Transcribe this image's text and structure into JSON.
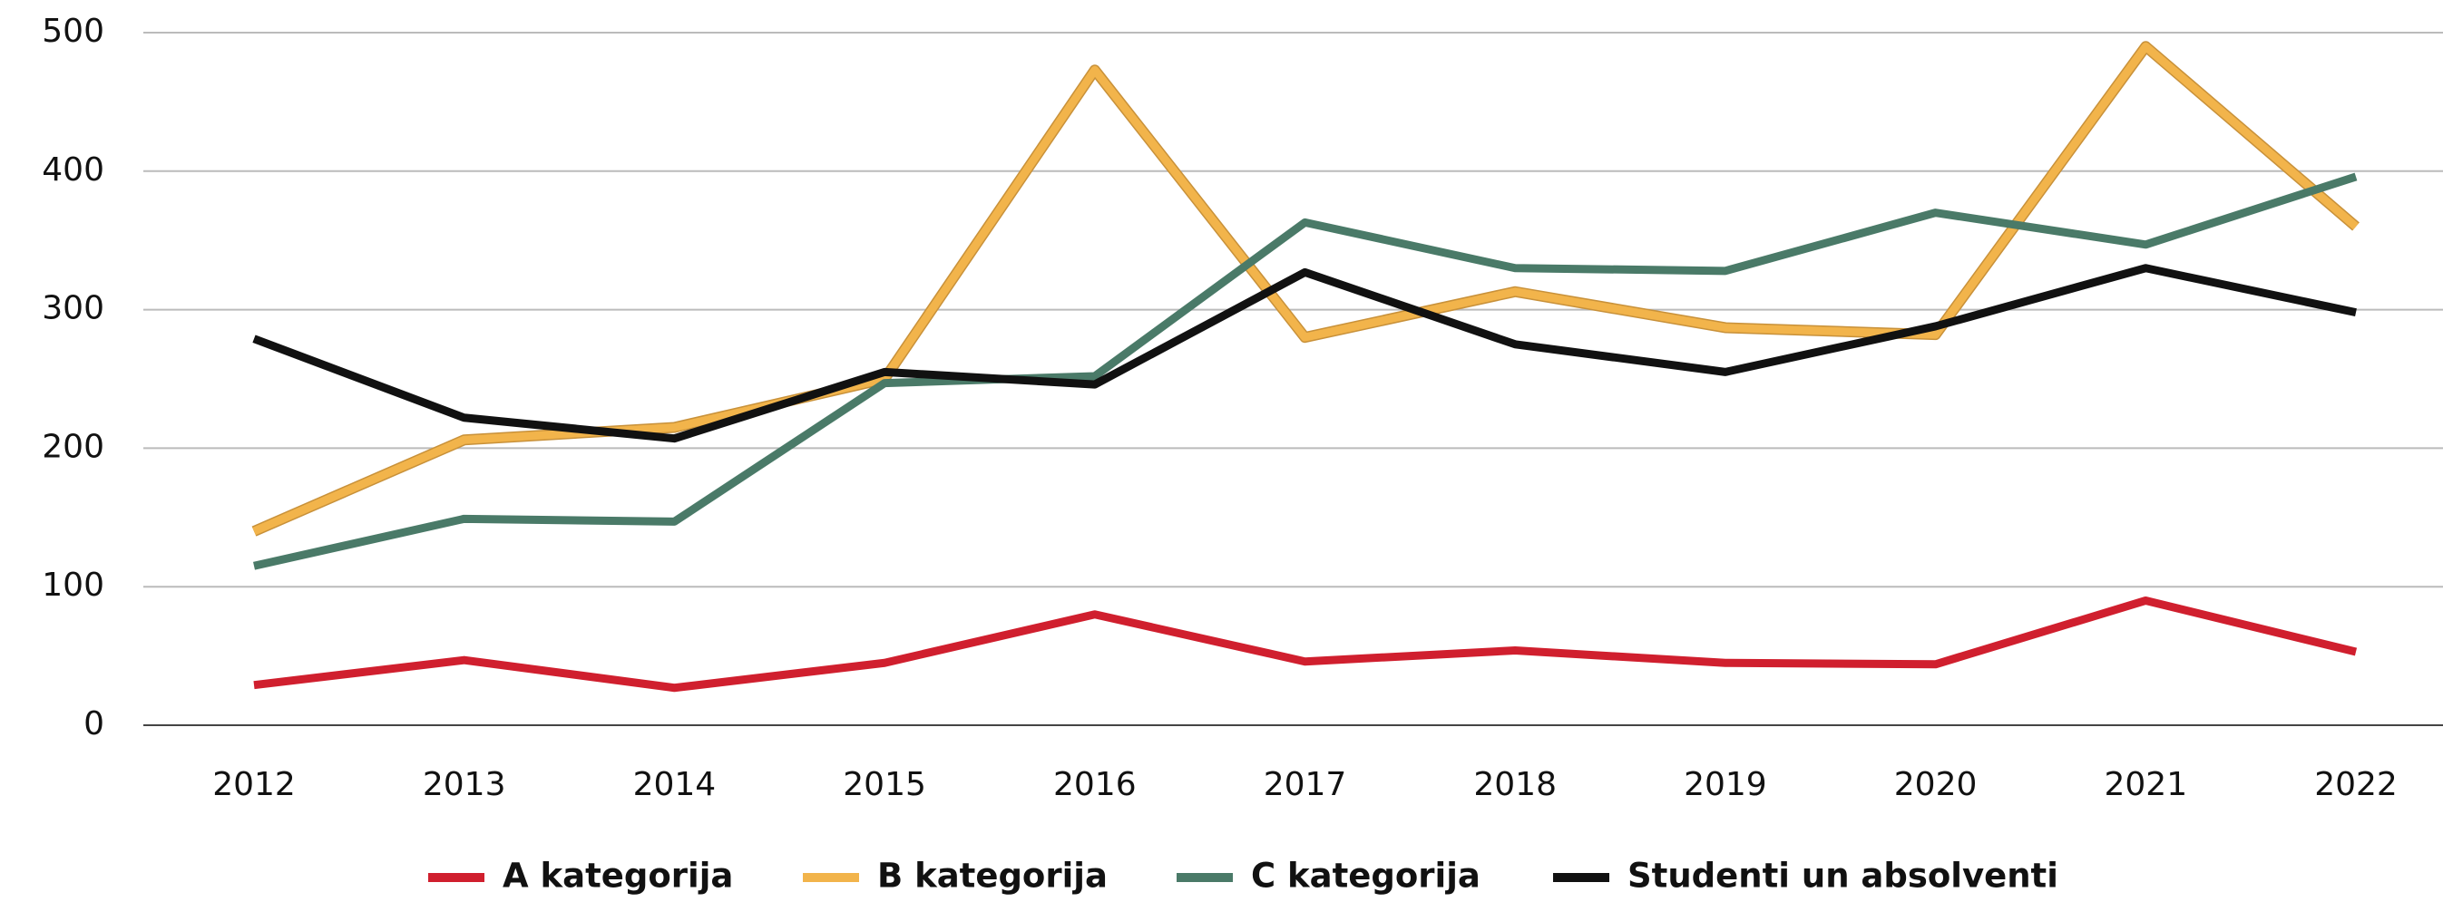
{
  "chart_data": {
    "type": "line",
    "categories": [
      "2012",
      "2013",
      "2014",
      "2015",
      "2016",
      "2017",
      "2018",
      "2019",
      "2020",
      "2021",
      "2022"
    ],
    "series": [
      {
        "name": "A kategorija",
        "color": "#d01f2e",
        "values": [
          29,
          47,
          27,
          45,
          80,
          46,
          54,
          45,
          44,
          90,
          53
        ]
      },
      {
        "name": "B kategorija",
        "color": "#f2b44b",
        "values": [
          140,
          206,
          215,
          250,
          473,
          280,
          313,
          287,
          282,
          490,
          360
        ]
      },
      {
        "name": "C kategorija",
        "color": "#4a7a68",
        "values": [
          115,
          149,
          147,
          247,
          252,
          363,
          330,
          328,
          370,
          347,
          396
        ]
      },
      {
        "name": "Studenti un absolventi",
        "color": "#111111",
        "values": [
          279,
          222,
          207,
          255,
          246,
          327,
          275,
          255,
          288,
          330,
          298
        ]
      }
    ],
    "ylim": [
      0,
      500
    ],
    "yticks": [
      0,
      100,
      200,
      300,
      400,
      500
    ],
    "grid": true,
    "legend": "bottom"
  }
}
